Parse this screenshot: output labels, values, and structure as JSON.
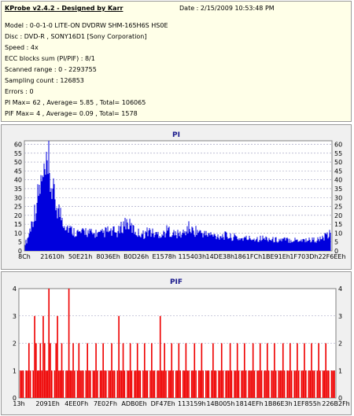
{
  "info": {
    "title": "KProbe v2.4.2 - Designed by Karr",
    "date": "Date : 2/15/2009 10:53:48 PM",
    "lines": [
      "Model : 0-0-1-0 LITE-ON DVDRW SHM-165H6S HS0E",
      "Disc : DVD-R , SONY16D1 [Sony Corporation]",
      "Speed : 4x",
      "ECC blocks sum (PI/PIF) : 8/1",
      "Scanned range : 0 - 2293755",
      "Sampling count : 126853",
      "Errors : 0",
      "PI Max= 62 , Average= 5.85 , Total= 106065",
      "PIF Max= 4 , Average= 0.09 , Total= 1578"
    ]
  },
  "colors": {
    "pi_bars": "#0000dd",
    "pif_bars": "#ee0000",
    "plot_bg": "#ffffff",
    "grid": "#9999bb",
    "title": "#1a1a8c"
  },
  "chart_data": [
    {
      "type": "bar",
      "title": "PI",
      "grid": true,
      "ylim": [
        0,
        62
      ],
      "yticks": [
        0,
        5,
        10,
        15,
        20,
        25,
        30,
        35,
        40,
        45,
        50,
        55,
        60
      ],
      "x_tick_labels": [
        "8Ch",
        "21610h",
        "50E21h",
        "8036Eh",
        "B0D26h",
        "E1578h",
        "115403h",
        "14DE38h",
        "1861FCh",
        "1BE91Eh",
        "1F703Dh",
        "22F6EEh"
      ],
      "x_range": [
        "8Ch",
        "22F6EEh"
      ],
      "max": 62,
      "average": 5.85,
      "envelope": [
        6,
        7,
        10,
        14,
        18,
        22,
        26,
        30,
        35,
        40,
        45,
        48,
        50,
        52,
        55,
        56,
        53,
        50,
        48,
        44,
        40,
        36,
        33,
        30,
        28,
        26,
        23,
        21,
        19,
        18,
        17,
        16,
        15,
        15,
        14,
        14,
        14,
        13,
        13,
        13,
        13,
        14,
        15,
        14,
        13,
        13,
        13,
        12,
        12,
        13,
        13,
        12,
        12,
        12,
        13,
        13,
        14,
        14,
        15,
        13,
        13,
        14,
        14,
        13,
        13,
        14,
        15,
        17,
        18,
        20,
        21,
        20,
        19,
        18,
        17,
        16,
        15,
        14,
        13,
        13,
        13,
        13,
        12,
        12,
        13,
        14,
        15,
        14,
        13,
        13,
        12,
        12,
        12,
        13,
        12,
        12,
        12,
        13,
        14,
        15,
        15,
        14,
        13,
        13,
        12,
        12,
        12,
        12,
        12,
        12,
        13,
        13,
        15,
        16,
        17,
        16,
        15,
        14,
        14,
        15,
        14,
        14,
        13,
        13,
        13,
        12,
        12,
        12,
        12,
        12,
        11,
        11,
        11,
        11,
        11,
        11,
        11,
        11,
        11,
        11,
        11,
        11,
        10,
        10,
        10,
        10,
        10,
        10,
        9,
        9,
        9,
        9,
        9,
        9,
        9,
        9,
        9,
        9,
        9,
        9,
        9,
        9,
        9,
        9,
        9,
        9,
        9,
        9,
        9,
        9,
        9,
        8,
        8,
        8,
        8,
        8,
        8,
        8,
        8,
        8,
        8,
        8,
        8,
        8,
        8,
        8,
        8,
        8,
        8,
        8,
        8,
        8,
        8,
        8,
        8,
        8,
        8,
        8,
        8,
        8,
        8,
        8,
        8,
        8,
        8,
        8,
        9,
        9,
        10,
        10,
        11,
        11,
        12,
        12
      ]
    },
    {
      "type": "bar",
      "title": "PIF",
      "grid": true,
      "ylim": [
        0,
        4
      ],
      "yticks": [
        0,
        1,
        2,
        3,
        4
      ],
      "x_tick_labels": [
        "13h",
        "2091Eh",
        "4EE0Fh",
        "7E02Fh",
        "ADB0Eh",
        "DF47Eh",
        "113159h",
        "14B005h",
        "1814EFh",
        "1B86E3h",
        "1EF855h",
        "226B2Fh"
      ],
      "x_range": [
        "13h",
        "226B2Fh"
      ],
      "max": 4,
      "average": 0.09,
      "values": [
        1,
        1,
        1,
        0,
        1,
        1,
        2,
        1,
        0,
        1,
        3,
        2,
        1,
        1,
        2,
        1,
        3,
        2,
        1,
        1,
        4,
        2,
        1,
        0,
        1,
        2,
        3,
        1,
        1,
        2,
        1,
        0,
        1,
        1,
        4,
        1,
        1,
        2,
        1,
        0,
        1,
        2,
        1,
        1,
        1,
        0,
        1,
        2,
        1,
        1,
        0,
        1,
        1,
        2,
        1,
        0,
        1,
        1,
        2,
        1,
        1,
        0,
        1,
        1,
        2,
        1,
        1,
        0,
        1,
        3,
        1,
        1,
        2,
        1,
        0,
        1,
        1,
        2,
        1,
        0,
        1,
        1,
        2,
        1,
        1,
        0,
        1,
        2,
        1,
        1,
        0,
        1,
        2,
        1,
        1,
        0,
        1,
        1,
        3,
        1,
        1,
        2,
        1,
        0,
        1,
        1,
        2,
        1,
        0,
        1,
        1,
        2,
        1,
        0,
        1,
        1,
        2,
        1,
        1,
        0,
        1,
        1,
        2,
        1,
        0,
        1,
        1,
        2,
        1,
        0,
        1,
        1,
        1,
        0,
        1,
        2,
        1,
        1,
        0,
        1,
        1,
        2,
        1,
        0,
        1,
        1,
        1,
        2,
        1,
        0,
        1,
        1,
        2,
        1,
        0,
        1,
        1,
        2,
        1,
        0,
        1,
        1,
        1,
        2,
        1,
        0,
        1,
        1,
        2,
        1,
        0,
        1,
        1,
        2,
        1,
        0,
        1,
        1,
        2,
        1,
        0,
        1,
        1,
        1,
        2,
        1,
        0,
        1,
        1,
        2,
        1,
        0,
        1,
        1,
        2,
        1,
        0,
        1,
        1,
        2,
        1,
        0,
        1,
        1,
        2,
        1,
        1,
        0,
        1,
        2,
        1,
        0,
        1,
        1,
        2,
        1,
        1,
        0,
        1,
        1,
        1
      ]
    }
  ]
}
